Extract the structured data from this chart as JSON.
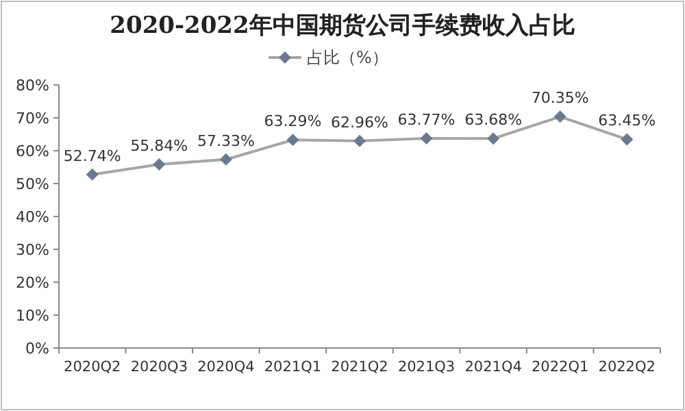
{
  "chart_data": {
    "type": "line",
    "title": "2020-2022年中国期货公司手续费收入占比",
    "categories": [
      "2020Q2",
      "2020Q3",
      "2020Q4",
      "2021Q1",
      "2021Q2",
      "2021Q3",
      "2021Q4",
      "2022Q1",
      "2022Q2"
    ],
    "series": [
      {
        "name": "占比（%）",
        "color": "#6b7a8f",
        "values": [
          52.74,
          55.84,
          57.33,
          63.29,
          62.96,
          63.77,
          63.68,
          70.35,
          63.45
        ],
        "value_labels": [
          "52.74%",
          "55.84%",
          "57.33%",
          "63.29%",
          "62.96%",
          "63.77%",
          "63.68%",
          "70.35%",
          "63.45%"
        ]
      }
    ],
    "ylim": [
      0,
      80
    ],
    "yticks": [
      {
        "value": 0,
        "label": "0%"
      },
      {
        "value": 10,
        "label": "10%"
      },
      {
        "value": 20,
        "label": "20%"
      },
      {
        "value": 30,
        "label": "30%"
      },
      {
        "value": 40,
        "label": "40%"
      },
      {
        "value": 50,
        "label": "50%"
      },
      {
        "value": 60,
        "label": "60%"
      },
      {
        "value": 70,
        "label": "70%"
      },
      {
        "value": 80,
        "label": "80%"
      }
    ],
    "marker": "diamond",
    "legend": "top",
    "grid": false
  }
}
